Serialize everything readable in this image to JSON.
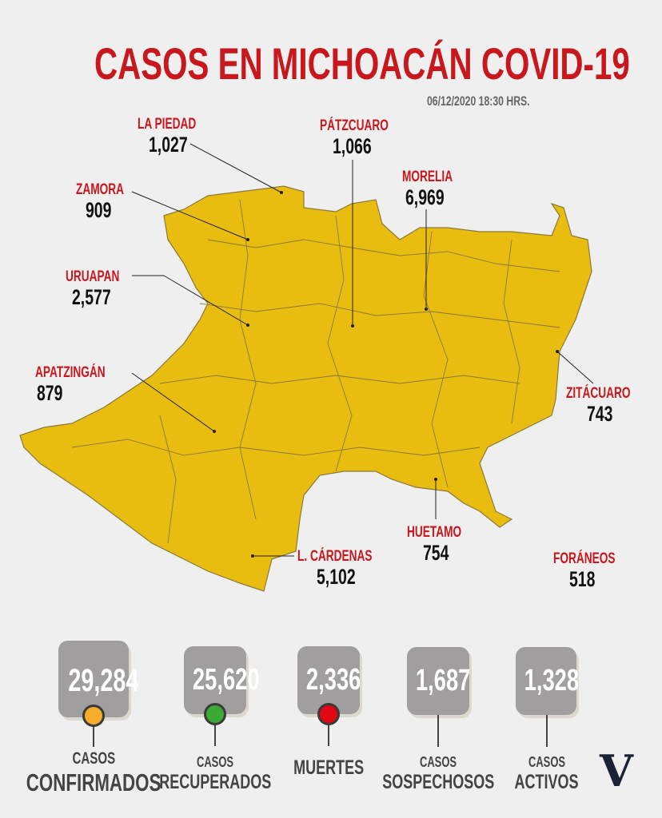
{
  "header": {
    "title": "CASOS EN MICHOACÁN COVID-19",
    "date": "06/12/2020 18:30 HRS."
  },
  "colors": {
    "map_fill": "#e8bd10",
    "title_red": "#c8181e",
    "box_gray": "#a09e9e",
    "dot_confirmados": "#f6ad2b",
    "dot_recuperados": "#3aaa35",
    "dot_muertes": "#e30613"
  },
  "municipios": [
    {
      "name": "LA PIEDAD",
      "value": "1,027"
    },
    {
      "name": "PÁTZCUARO",
      "value": "1,066"
    },
    {
      "name": "ZAMORA",
      "value": "909"
    },
    {
      "name": "MORELIA",
      "value": "6,969"
    },
    {
      "name": "URUAPAN",
      "value": "2,577"
    },
    {
      "name": "APATZINGÁN",
      "value": "879"
    },
    {
      "name": "ZITÁCUARO",
      "value": "743"
    },
    {
      "name": "HUETAMO",
      "value": "754"
    },
    {
      "name": "L. CÁRDENAS",
      "value": "5,102"
    },
    {
      "name": "FORÁNEOS",
      "value": "518"
    }
  ],
  "totals": [
    {
      "value": "29,284",
      "top": "CASOS",
      "bottom": "CONFIRMADOS",
      "dot": "orange"
    },
    {
      "value": "25,620",
      "top": "CASOS",
      "bottom": "RECUPERADOS",
      "dot": "green"
    },
    {
      "value": "2,336",
      "top": "",
      "bottom": "MUERTES",
      "dot": "red"
    },
    {
      "value": "1,687",
      "top": "CASOS",
      "bottom": "SOSPECHOSOS",
      "dot": ""
    },
    {
      "value": "1,328",
      "top": "CASOS",
      "bottom": "ACTIVOS",
      "dot": ""
    }
  ],
  "logo": "V"
}
